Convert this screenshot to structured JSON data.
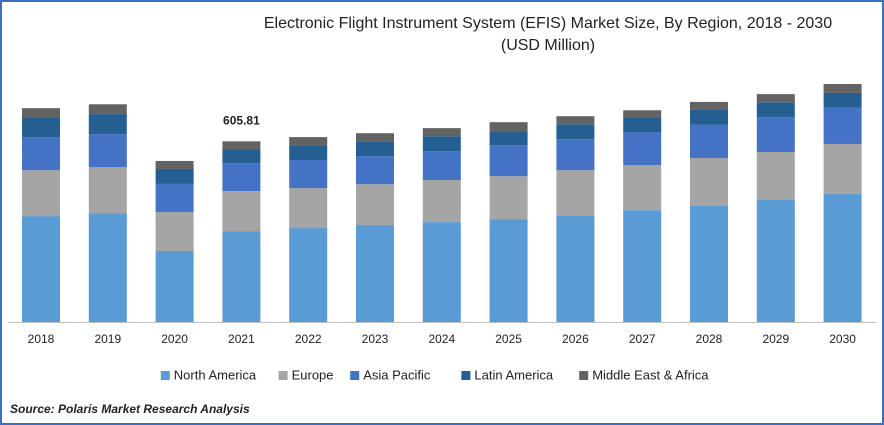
{
  "chart_data": {
    "type": "stacked_bar",
    "title": "Electronic Flight Instrument System (EFIS) Market Size, By Region, 2018 - 2030",
    "subtitle": "(USD Million)",
    "categories": [
      "2018",
      "2019",
      "2020",
      "2021",
      "2022",
      "2023",
      "2024",
      "2025",
      "2026",
      "2027",
      "2028",
      "2029",
      "2030"
    ],
    "series": [
      {
        "name": "North America",
        "color": "#5b9bd5",
        "values": [
          355,
          365,
          238,
          304.81,
          315,
          325,
          335,
          345,
          358,
          375,
          389,
          409,
          429
        ]
      },
      {
        "name": "Europe",
        "color": "#a5a5a5",
        "values": [
          154,
          154,
          131,
          134,
          134,
          137,
          141,
          144,
          151,
          151,
          161,
          161,
          168
        ]
      },
      {
        "name": "Asia Pacific",
        "color": "#4472c4",
        "values": [
          111,
          111,
          94,
          94,
          94,
          94,
          97,
          104,
          104,
          111,
          111,
          117,
          121
        ]
      },
      {
        "name": "Latin America",
        "color": "#255e91",
        "values": [
          67,
          67,
          50,
          47,
          50,
          50,
          50,
          47,
          50,
          50,
          50,
          50,
          50
        ]
      },
      {
        "name": "Middle East & Africa",
        "color": "#636363",
        "values": [
          30,
          33,
          27,
          26,
          27,
          27,
          27,
          30,
          27,
          23,
          27,
          27,
          30
        ]
      }
    ],
    "annotations": [
      {
        "category": "2021",
        "text": "605.81"
      }
    ],
    "source": "Source: Polaris Market Research Analysis"
  }
}
